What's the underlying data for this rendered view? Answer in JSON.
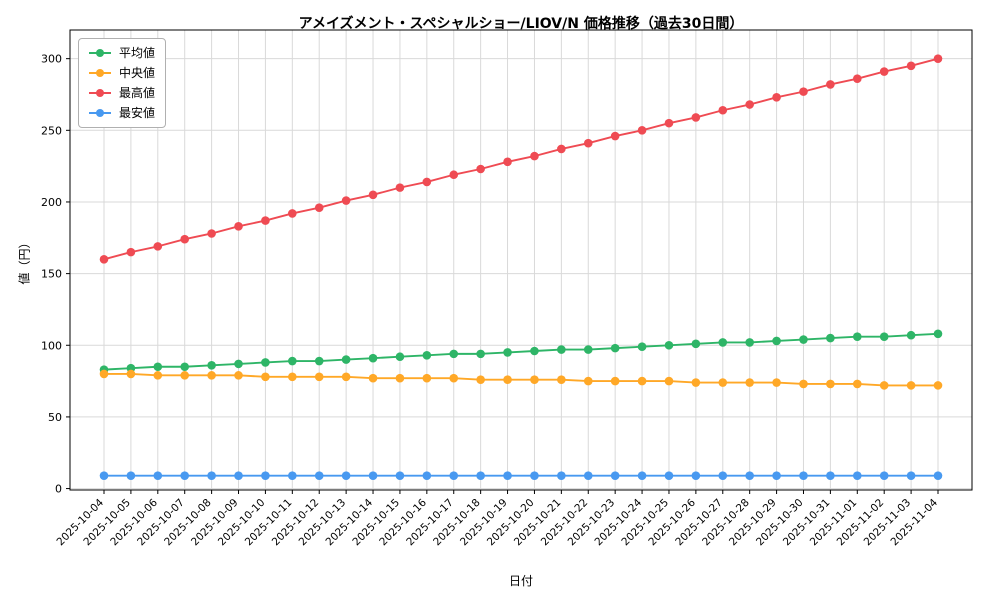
{
  "chart_data": {
    "type": "line",
    "title": "アメイズメント・スペシャルショー/LIOV/N 価格推移（過去30日間）",
    "xlabel": "日付",
    "ylabel": "値（円）",
    "grid": true,
    "legend_position": "upper-left",
    "ylim": [
      -1,
      320
    ],
    "yticks": [
      0,
      50,
      100,
      150,
      200,
      250,
      300
    ],
    "x": [
      "2025-10-04",
      "2025-10-05",
      "2025-10-06",
      "2025-10-07",
      "2025-10-08",
      "2025-10-09",
      "2025-10-10",
      "2025-10-11",
      "2025-10-12",
      "2025-10-13",
      "2025-10-14",
      "2025-10-15",
      "2025-10-16",
      "2025-10-17",
      "2025-10-18",
      "2025-10-19",
      "2025-10-20",
      "2025-10-21",
      "2025-10-22",
      "2025-10-23",
      "2025-10-24",
      "2025-10-25",
      "2025-10-26",
      "2025-10-27",
      "2025-10-28",
      "2025-10-29",
      "2025-10-30",
      "2025-10-31",
      "2025-11-01",
      "2025-11-02",
      "2025-11-03",
      "2025-11-04"
    ],
    "series": [
      {
        "name": "平均値",
        "color": "#2eb567",
        "values": [
          83,
          84,
          85,
          85,
          86,
          87,
          88,
          89,
          89,
          90,
          91,
          92,
          93,
          94,
          94,
          95,
          96,
          97,
          97,
          98,
          99,
          100,
          101,
          102,
          102,
          103,
          104,
          105,
          106,
          106,
          107,
          108
        ]
      },
      {
        "name": "中央値",
        "color": "#ffa827",
        "values": [
          80,
          80,
          79,
          79,
          79,
          79,
          78,
          78,
          78,
          78,
          77,
          77,
          77,
          77,
          76,
          76,
          76,
          76,
          75,
          75,
          75,
          75,
          74,
          74,
          74,
          74,
          73,
          73,
          73,
          72,
          72,
          72
        ]
      },
      {
        "name": "最高値",
        "color": "#ef4b53",
        "values": [
          160,
          165,
          169,
          174,
          178,
          183,
          187,
          192,
          196,
          201,
          205,
          210,
          214,
          219,
          223,
          228,
          232,
          237,
          241,
          246,
          250,
          255,
          259,
          264,
          268,
          273,
          277,
          282,
          286,
          291,
          295,
          300
        ]
      },
      {
        "name": "最安値",
        "color": "#4899f0",
        "values": [
          9,
          9,
          9,
          9,
          9,
          9,
          9,
          9,
          9,
          9,
          9,
          9,
          9,
          9,
          9,
          9,
          9,
          9,
          9,
          9,
          9,
          9,
          9,
          9,
          9,
          9,
          9,
          9,
          9,
          9,
          9,
          9
        ]
      }
    ]
  }
}
